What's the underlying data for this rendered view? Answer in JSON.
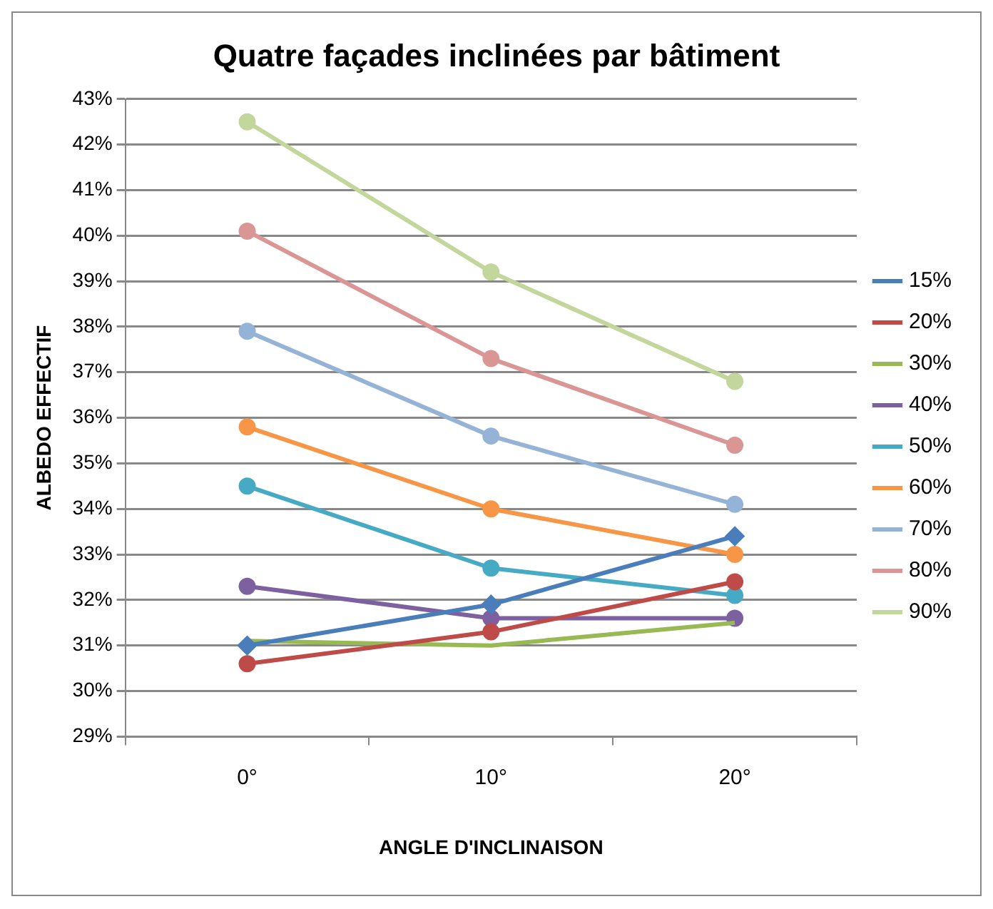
{
  "chart_data": {
    "type": "line",
    "title": "Quatre façades inclinées par bâtiment",
    "xlabel": "ANGLE D'INCLINAISON",
    "ylabel": "ALBEDO EFFECTIF",
    "categories": [
      "0°",
      "10°",
      "20°"
    ],
    "series": [
      {
        "name": "15%",
        "color": "#4a7ebb",
        "marker": "diamond",
        "values": [
          31.0,
          31.9,
          33.4
        ]
      },
      {
        "name": "20%",
        "color": "#be4b48",
        "marker": "circle",
        "values": [
          30.6,
          31.3,
          32.4
        ]
      },
      {
        "name": "30%",
        "color": "#98b954",
        "marker": "none",
        "values": [
          31.1,
          31.0,
          31.5
        ]
      },
      {
        "name": "40%",
        "color": "#7d60a0",
        "marker": "circle",
        "values": [
          32.3,
          31.6,
          31.6
        ]
      },
      {
        "name": "50%",
        "color": "#46aac5",
        "marker": "circle",
        "values": [
          34.5,
          32.7,
          32.1
        ]
      },
      {
        "name": "60%",
        "color": "#f79646",
        "marker": "circle",
        "values": [
          35.8,
          34.0,
          33.0
        ]
      },
      {
        "name": "70%",
        "color": "#95b3d7",
        "marker": "circle",
        "values": [
          37.9,
          35.6,
          34.1
        ]
      },
      {
        "name": "80%",
        "color": "#d99694",
        "marker": "circle",
        "values": [
          40.1,
          37.3,
          35.4
        ]
      },
      {
        "name": "90%",
        "color": "#c3d69b",
        "marker": "circle",
        "values": [
          42.5,
          39.2,
          36.8
        ]
      }
    ],
    "ylim": [
      29,
      43
    ],
    "yticks": [
      {
        "value": 29,
        "label": "29%"
      },
      {
        "value": 30,
        "label": "30%"
      },
      {
        "value": 31,
        "label": "31%"
      },
      {
        "value": 32,
        "label": "32%"
      },
      {
        "value": 33,
        "label": "33%"
      },
      {
        "value": 34,
        "label": "34%"
      },
      {
        "value": 35,
        "label": "35%"
      },
      {
        "value": 36,
        "label": "36%"
      },
      {
        "value": 37,
        "label": "37%"
      },
      {
        "value": 38,
        "label": "38%"
      },
      {
        "value": 39,
        "label": "39%"
      },
      {
        "value": 40,
        "label": "40%"
      },
      {
        "value": 41,
        "label": "41%"
      },
      {
        "value": 42,
        "label": "42%"
      },
      {
        "value": 43,
        "label": "43%"
      }
    ],
    "grid": "y",
    "legend": "right",
    "line_style": "solid"
  }
}
